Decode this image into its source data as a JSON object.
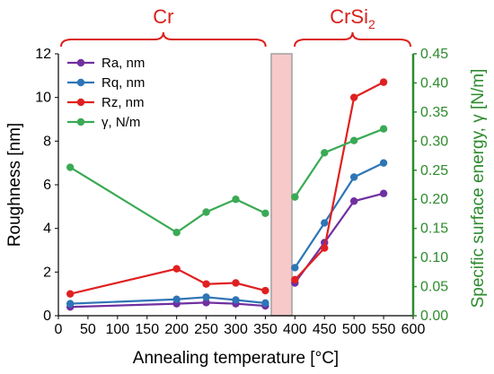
{
  "chart_data": {
    "type": "line",
    "xlabel": "Annealing temperature [°C]",
    "ylabel": "Roughness [nm]",
    "y2label": "Specific surface energy, γ [N/m]",
    "xlim": [
      0,
      600
    ],
    "ylim": [
      0,
      12
    ],
    "y2lim": [
      0,
      0.45
    ],
    "xticks": [
      0,
      50,
      100,
      150,
      200,
      250,
      300,
      350,
      400,
      450,
      500,
      550,
      600
    ],
    "yticks": [
      0,
      2,
      4,
      6,
      8,
      10,
      12
    ],
    "y2ticks": [
      "0.00",
      "0.05",
      "0.10",
      "0.15",
      "0.20",
      "0.25",
      "0.30",
      "0.35",
      "0.40",
      "0.45"
    ],
    "grid": false,
    "legend_position": "top-left",
    "shaded_region": {
      "x": [
        360,
        395
      ]
    },
    "groups": [
      {
        "label": "Cr",
        "sub": "",
        "x_range": [
          0,
          355
        ]
      },
      {
        "label": "CrSi",
        "sub": "2",
        "x_range": [
          395,
          600
        ]
      }
    ],
    "series": [
      {
        "name": "Ra, nm",
        "axis": "left",
        "color": "#7030a0",
        "segments": [
          {
            "x": [
              20,
              200,
              250,
              300,
              350
            ],
            "y": [
              0.4,
              0.55,
              0.6,
              0.55,
              0.45
            ]
          },
          {
            "x": [
              400,
              450,
              500,
              550
            ],
            "y": [
              1.5,
              3.35,
              5.25,
              5.6
            ]
          }
        ]
      },
      {
        "name": "Rq, nm",
        "axis": "left",
        "color": "#2e75b6",
        "segments": [
          {
            "x": [
              20,
              200,
              250,
              300,
              350
            ],
            "y": [
              0.55,
              0.75,
              0.85,
              0.72,
              0.58
            ]
          },
          {
            "x": [
              400,
              450,
              500,
              550
            ],
            "y": [
              2.2,
              4.25,
              6.35,
              7.0
            ]
          }
        ]
      },
      {
        "name": "Rz, nm",
        "axis": "left",
        "color": "#e02020",
        "segments": [
          {
            "x": [
              20,
              200,
              250,
              300,
              350
            ],
            "y": [
              1.0,
              2.15,
              1.45,
              1.5,
              1.15
            ]
          },
          {
            "x": [
              400,
              450,
              500,
              550
            ],
            "y": [
              1.65,
              3.1,
              10.0,
              10.7
            ]
          }
        ]
      },
      {
        "name": "γ, N/m",
        "axis": "right",
        "color": "#3aaa55",
        "segments": [
          {
            "x": [
              20,
              200,
              250,
              300,
              350
            ],
            "y": [
              0.255,
              0.143,
              0.178,
              0.2,
              0.176
            ]
          },
          {
            "x": [
              400,
              450,
              500,
              550
            ],
            "y": [
              0.204,
              0.28,
              0.301,
              0.321
            ]
          }
        ]
      }
    ]
  }
}
